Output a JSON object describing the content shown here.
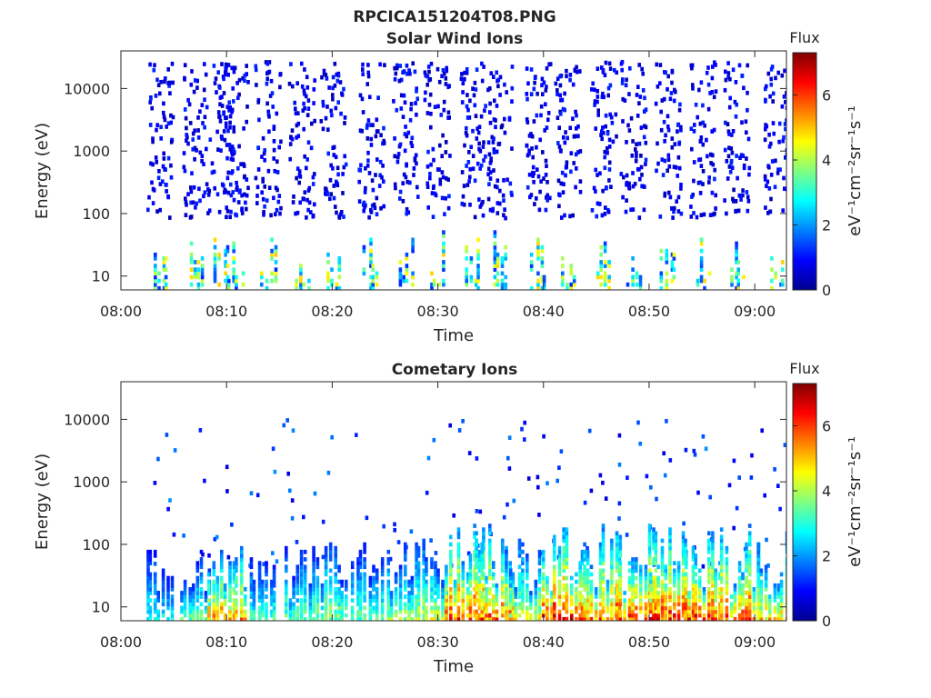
{
  "figure": {
    "title": "RPCICA151204T08.PNG"
  },
  "colorbar": {
    "colormap": "jet",
    "stops": [
      "#00008f",
      "#0000ff",
      "#0080ff",
      "#00ffff",
      "#80ff80",
      "#ffff00",
      "#ff8000",
      "#ff0000",
      "#800000"
    ]
  },
  "chart_data": [
    {
      "type": "heatmap",
      "title": "Solar Wind Ions",
      "xlabel": "Time",
      "ylabel": "Energy (eV)",
      "x_range": [
        "08:00",
        "09:03"
      ],
      "x_ticks": [
        "08:00",
        "08:10",
        "08:20",
        "08:30",
        "08:40",
        "08:50",
        "09:00"
      ],
      "y_scale": "log",
      "y_range": [
        6,
        40000
      ],
      "y_ticks": [
        10,
        100,
        1000,
        10000
      ],
      "y_tick_labels": [
        "10",
        "100",
        "1000",
        "10000"
      ],
      "colorbar": {
        "title": "Flux",
        "label": "eV⁻¹cm⁻²sr⁻¹s⁻¹",
        "range": [
          0,
          7.3
        ],
        "ticks": [
          0,
          2,
          4,
          6
        ],
        "tick_labels": [
          "0",
          "2",
          "4",
          "6"
        ]
      },
      "bursts_time_minutes": [
        3.6,
        7.0,
        9.4,
        10.7,
        13.8,
        17.0,
        20.0,
        23.6,
        26.8,
        29.8,
        33.2,
        35.8,
        39.4,
        42.2,
        45.6,
        48.4,
        51.7,
        55.0,
        58.2,
        62.0
      ],
      "low_energy_flux_peak": 4.5,
      "high_energy_flux_typical": 1.0
    },
    {
      "type": "heatmap",
      "title": "Cometary Ions",
      "xlabel": "Time",
      "ylabel": "Energy (eV)",
      "x_range": [
        "08:00",
        "09:03"
      ],
      "x_ticks": [
        "08:00",
        "08:10",
        "08:20",
        "08:30",
        "08:40",
        "08:50",
        "09:00"
      ],
      "y_scale": "log",
      "y_range": [
        6,
        40000
      ],
      "y_ticks": [
        10,
        100,
        1000,
        10000
      ],
      "y_tick_labels": [
        "10",
        "100",
        "1000",
        "10000"
      ],
      "colorbar": {
        "title": "Flux",
        "label": "eV⁻¹cm⁻²sr⁻¹s⁻¹",
        "range": [
          0,
          7.3
        ],
        "ticks": [
          0,
          2,
          4,
          6
        ],
        "tick_labels": [
          "0",
          "2",
          "4",
          "6"
        ]
      },
      "bursts_time_minutes": [
        3.6,
        7.0,
        10.0,
        13.4,
        16.9,
        20.0,
        23.3,
        26.6,
        29.5,
        32.5,
        35.4,
        38.0,
        41.8,
        45.5,
        48.6,
        51.8,
        55.0,
        58.6,
        61.8
      ],
      "burst_peak_flux": [
        3.0,
        3.6,
        5.6,
        3.4,
        3.6,
        4.0,
        3.6,
        4.1,
        4.4,
        6.3,
        6.0,
        4.6,
        6.6,
        5.8,
        6.2,
        6.4,
        6.4,
        6.2,
        5.2
      ]
    }
  ]
}
